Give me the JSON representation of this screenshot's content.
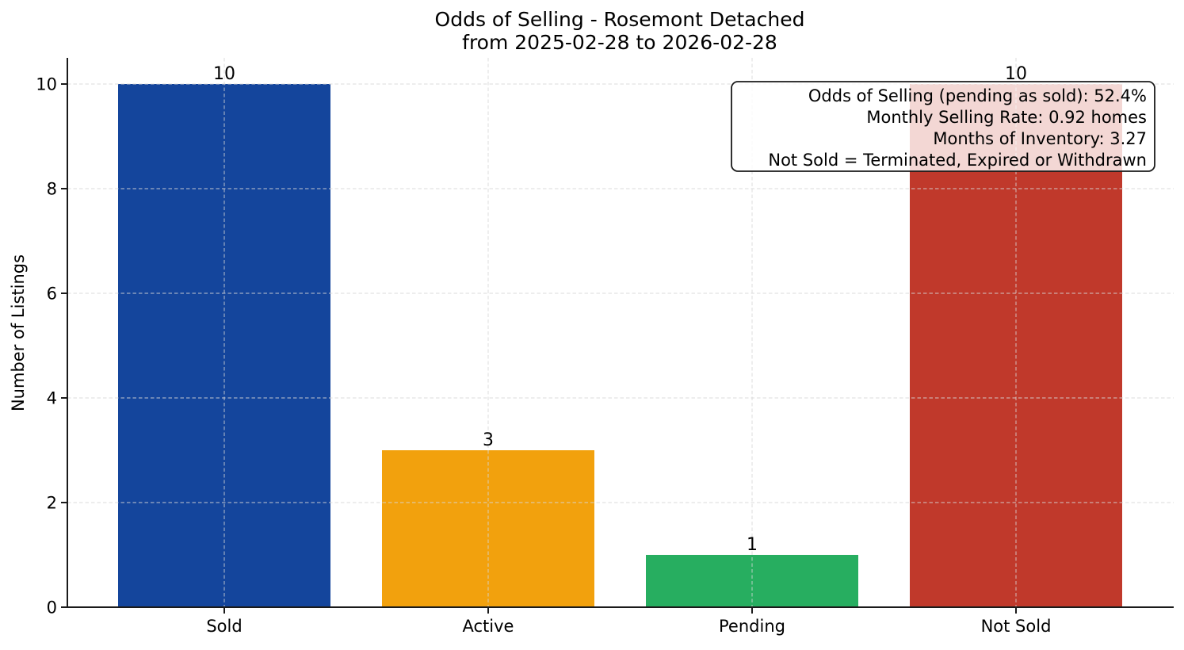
{
  "chart_data": {
    "type": "bar",
    "title": "Odds of Selling - Rosemont Detached",
    "subtitle": "from 2025-02-28 to 2026-02-28",
    "xlabel": "",
    "ylabel": "Number of Listings",
    "categories": [
      "Sold",
      "Active",
      "Pending",
      "Not Sold"
    ],
    "values": [
      10,
      3,
      1,
      10
    ],
    "value_labels": [
      "10",
      "3",
      "1",
      "10"
    ],
    "bar_colors": [
      "#14459c",
      "#f2a10d",
      "#27ae60",
      "#c0392b"
    ],
    "ylim": [
      0,
      10.5
    ],
    "yticks": [
      0,
      2,
      4,
      6,
      8,
      10
    ],
    "grid": {
      "style": "dashed",
      "axes": "both",
      "above_bars": true
    },
    "legend_position": "none",
    "annotation": {
      "position": "top-right",
      "text_align": "right",
      "lines": [
        "Odds of Selling (pending as sold): 52.4%",
        "Monthly Selling Rate: 0.92 homes",
        "Months of Inventory: 3.27",
        "Not Sold = Terminated, Expired or Withdrawn"
      ]
    },
    "colors": {
      "axis": "#1a1a1a",
      "text": "#000000",
      "grid": "#d7d7d7",
      "annotation_bg": "rgba(255,255,255,0.8)",
      "annotation_border": "#1a1a1a"
    }
  }
}
